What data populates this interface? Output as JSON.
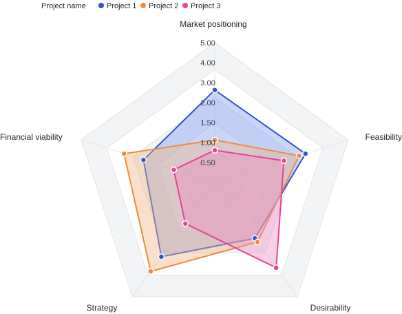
{
  "chart_data": {
    "type": "radar",
    "legend_title": "Project name",
    "legend_position": "top-left",
    "axes": [
      "Market positioning",
      "Feasibility",
      "Desirability",
      "Strategy",
      "Financial viability"
    ],
    "ticks": [
      "0.50",
      "1.00",
      "1.50",
      "2.00",
      "3.00",
      "4.00",
      "5.00"
    ],
    "tick_values": [
      0.5,
      1.0,
      1.5,
      2.0,
      3.0,
      4.0,
      5.0
    ],
    "max": 5,
    "series": [
      {
        "name": "Project 1",
        "color": "#2f56c8",
        "fill": "#7f9cf0",
        "values": [
          4.1,
          4.2,
          3.0,
          4.0,
          3.3
        ]
      },
      {
        "name": "Project 2",
        "color": "#ee8c3e",
        "fill": "#f3b482",
        "values": [
          1.9,
          3.9,
          3.2,
          4.8,
          4.2
        ]
      },
      {
        "name": "Project 3",
        "color": "#e2449a",
        "fill": "#f08dc2",
        "values": [
          1.45,
          3.2,
          4.6,
          2.2,
          1.9
        ]
      }
    ]
  }
}
